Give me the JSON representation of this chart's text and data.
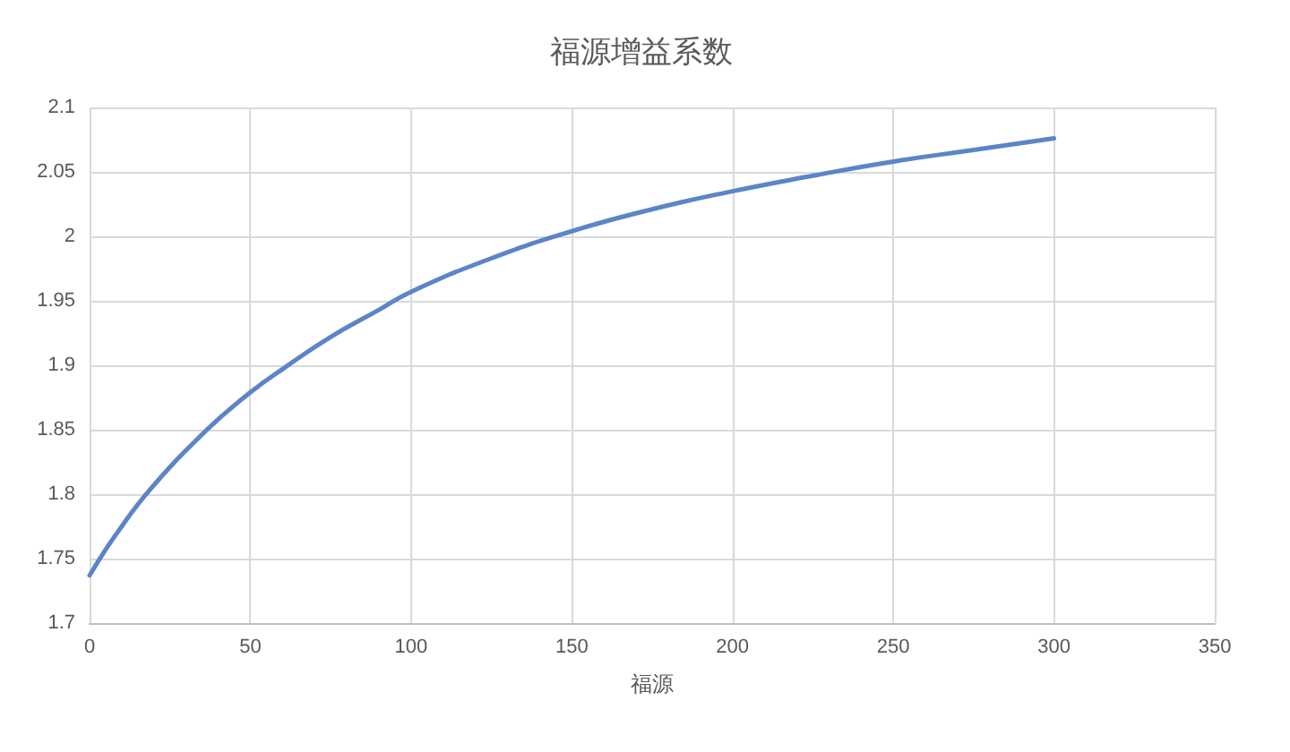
{
  "chart_data": {
    "type": "line",
    "title": "福源增益系数",
    "xlabel": "福源",
    "x": [
      0,
      5,
      10,
      15,
      20,
      25,
      30,
      40,
      50,
      60,
      75,
      90,
      100,
      125,
      150,
      175,
      200,
      225,
      250,
      275,
      300
    ],
    "series": [
      {
        "color": "#5b85c8",
        "values": [
          1.737,
          1.757,
          1.775,
          1.792,
          1.807,
          1.821,
          1.834,
          1.858,
          1.879,
          1.897,
          1.922,
          1.943,
          1.957,
          1.983,
          2.004,
          2.021,
          2.035,
          2.047,
          2.058,
          2.067,
          2.076
        ]
      }
    ],
    "xlim": [
      0,
      350
    ],
    "xticks": [
      0,
      50,
      100,
      150,
      200,
      250,
      300,
      350
    ],
    "ylim": [
      1.7,
      2.1
    ],
    "yticks": [
      1.7,
      1.75,
      1.8,
      1.85,
      1.9,
      1.95,
      2,
      2.05,
      2.1
    ],
    "grid": true,
    "marker": "none",
    "line_style": "solid"
  }
}
